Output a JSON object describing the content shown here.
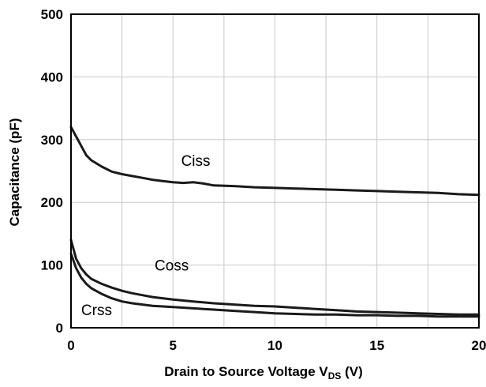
{
  "chart_data": {
    "type": "line",
    "title": "",
    "xlabel": "Drain to Source Voltage V",
    "xlabel_subscript": "DS",
    "xlabel_suffix": " (V)",
    "ylabel": "Capacitance (pF)",
    "xlim": [
      0,
      20
    ],
    "ylim": [
      0,
      500
    ],
    "xticks": [
      0,
      5,
      10,
      15,
      20
    ],
    "yticks": [
      0,
      100,
      200,
      300,
      400,
      500
    ],
    "grid": true,
    "legend": "inline labels",
    "series": [
      {
        "name": "Ciss",
        "x": [
          0,
          0.25,
          0.5,
          0.75,
          1,
          1.5,
          2,
          2.5,
          3,
          3.5,
          4,
          4.5,
          5,
          5.5,
          6,
          6.5,
          7,
          8,
          9,
          10,
          11,
          12,
          13,
          14,
          15,
          16,
          17,
          18,
          19,
          20
        ],
        "y": [
          320,
          305,
          290,
          275,
          267,
          257,
          249,
          245,
          242,
          239,
          236,
          234,
          232,
          231,
          232,
          230,
          227,
          226,
          224,
          223,
          222,
          221,
          220,
          219,
          218,
          217,
          216,
          215,
          213,
          212
        ]
      },
      {
        "name": "Coss",
        "x": [
          0,
          0.25,
          0.5,
          0.75,
          1,
          1.5,
          2,
          2.5,
          3,
          3.5,
          4,
          5,
          6,
          7,
          8,
          9,
          10,
          11,
          12,
          13,
          14,
          15,
          16,
          17,
          18,
          19,
          20
        ],
        "y": [
          140,
          110,
          95,
          85,
          78,
          70,
          64,
          59,
          55,
          52,
          49,
          45,
          42,
          39,
          37,
          35,
          34,
          32,
          30,
          28,
          26,
          25,
          24,
          23,
          22,
          21,
          21
        ]
      },
      {
        "name": "Crss",
        "x": [
          0,
          0.25,
          0.5,
          0.75,
          1,
          1.5,
          2,
          2.5,
          3,
          3.5,
          4,
          5,
          6,
          7,
          8,
          9,
          10,
          11,
          12,
          13,
          14,
          15,
          16,
          17,
          18,
          19,
          20
        ],
        "y": [
          118,
          95,
          80,
          70,
          63,
          54,
          47,
          42,
          39,
          37,
          35,
          33,
          31,
          29,
          27,
          25,
          23,
          22,
          21,
          21,
          20,
          20,
          19,
          19,
          18,
          18,
          18
        ]
      }
    ],
    "annotations": [
      {
        "text": "Ciss",
        "x": 5.4,
        "y": 258
      },
      {
        "text": "Coss",
        "x": 4.1,
        "y": 91
      },
      {
        "text": "Crss",
        "x": 0.5,
        "y": 20
      }
    ]
  }
}
